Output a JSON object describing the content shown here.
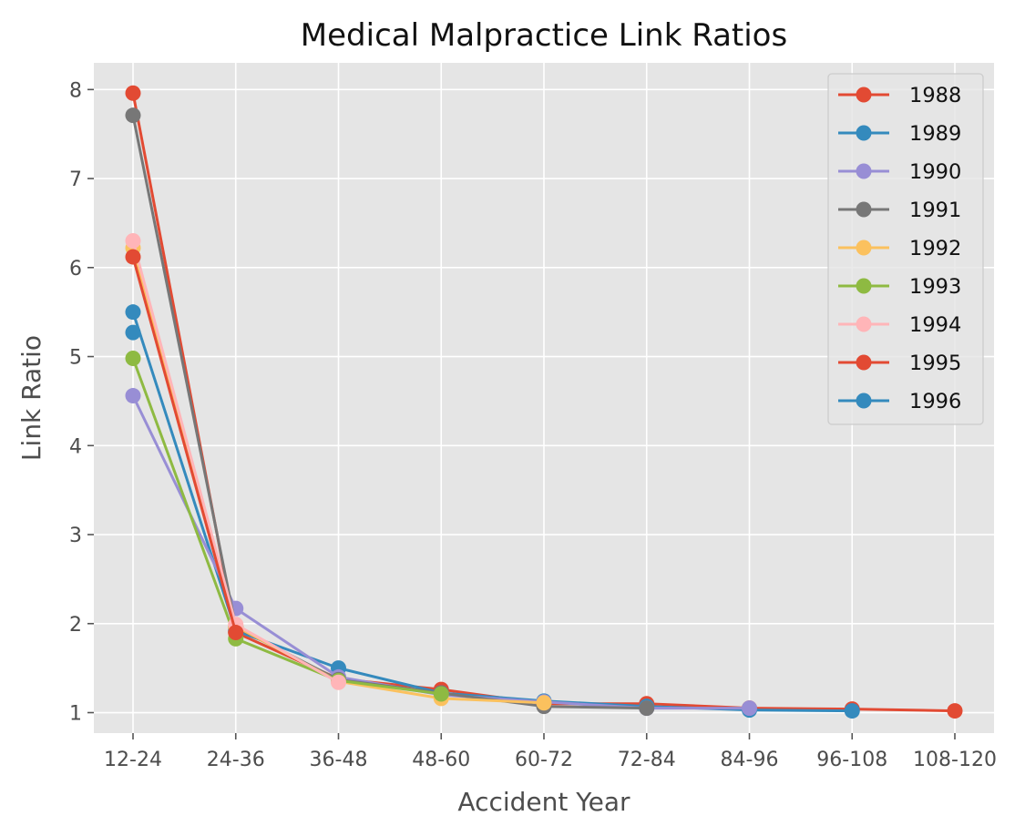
{
  "chart_data": {
    "type": "line",
    "title": "Medical Malpractice Link Ratios",
    "xlabel": "Accident Year",
    "ylabel": "Link Ratio",
    "categories": [
      "12-24",
      "24-36",
      "36-48",
      "48-60",
      "60-72",
      "72-84",
      "84-96",
      "96-108",
      "108-120"
    ],
    "ylim": [
      0.77,
      8.3
    ],
    "yticks": [
      1,
      2,
      3,
      4,
      5,
      6,
      7,
      8
    ],
    "grid": true,
    "legend_position": "top-right",
    "style": "ggplot",
    "series": [
      {
        "name": "1988",
        "color": "#E24A33",
        "values": [
          7.96,
          1.9,
          1.38,
          1.26,
          1.1,
          1.1,
          1.05,
          1.04,
          1.02
        ]
      },
      {
        "name": "1989",
        "color": "#348ABD",
        "values": [
          5.5,
          1.92,
          1.5,
          1.22,
          1.13,
          1.07,
          1.03,
          1.02,
          null
        ]
      },
      {
        "name": "1990",
        "color": "#988ED5",
        "values": [
          4.56,
          2.17,
          1.4,
          1.2,
          1.12,
          1.05,
          1.05,
          null,
          null
        ]
      },
      {
        "name": "1991",
        "color": "#777777",
        "values": [
          7.71,
          1.96,
          1.37,
          1.22,
          1.07,
          1.05,
          null,
          null,
          null
        ]
      },
      {
        "name": "1992",
        "color": "#FBC15E",
        "values": [
          6.22,
          1.97,
          1.35,
          1.16,
          1.11,
          null,
          null,
          null,
          null
        ]
      },
      {
        "name": "1993",
        "color": "#8EBA42",
        "values": [
          4.98,
          1.83,
          1.36,
          1.21,
          null,
          null,
          null,
          null,
          null
        ]
      },
      {
        "name": "1994",
        "color": "#FFB5B8",
        "values": [
          6.3,
          1.99,
          1.34,
          null,
          null,
          null,
          null,
          null,
          null
        ]
      },
      {
        "name": "1995",
        "color": "#E24A33",
        "values": [
          6.12,
          1.9,
          null,
          null,
          null,
          null,
          null,
          null,
          null
        ]
      },
      {
        "name": "1996",
        "color": "#348ABD",
        "values": [
          5.27,
          null,
          null,
          null,
          null,
          null,
          null,
          null,
          null
        ]
      }
    ]
  }
}
